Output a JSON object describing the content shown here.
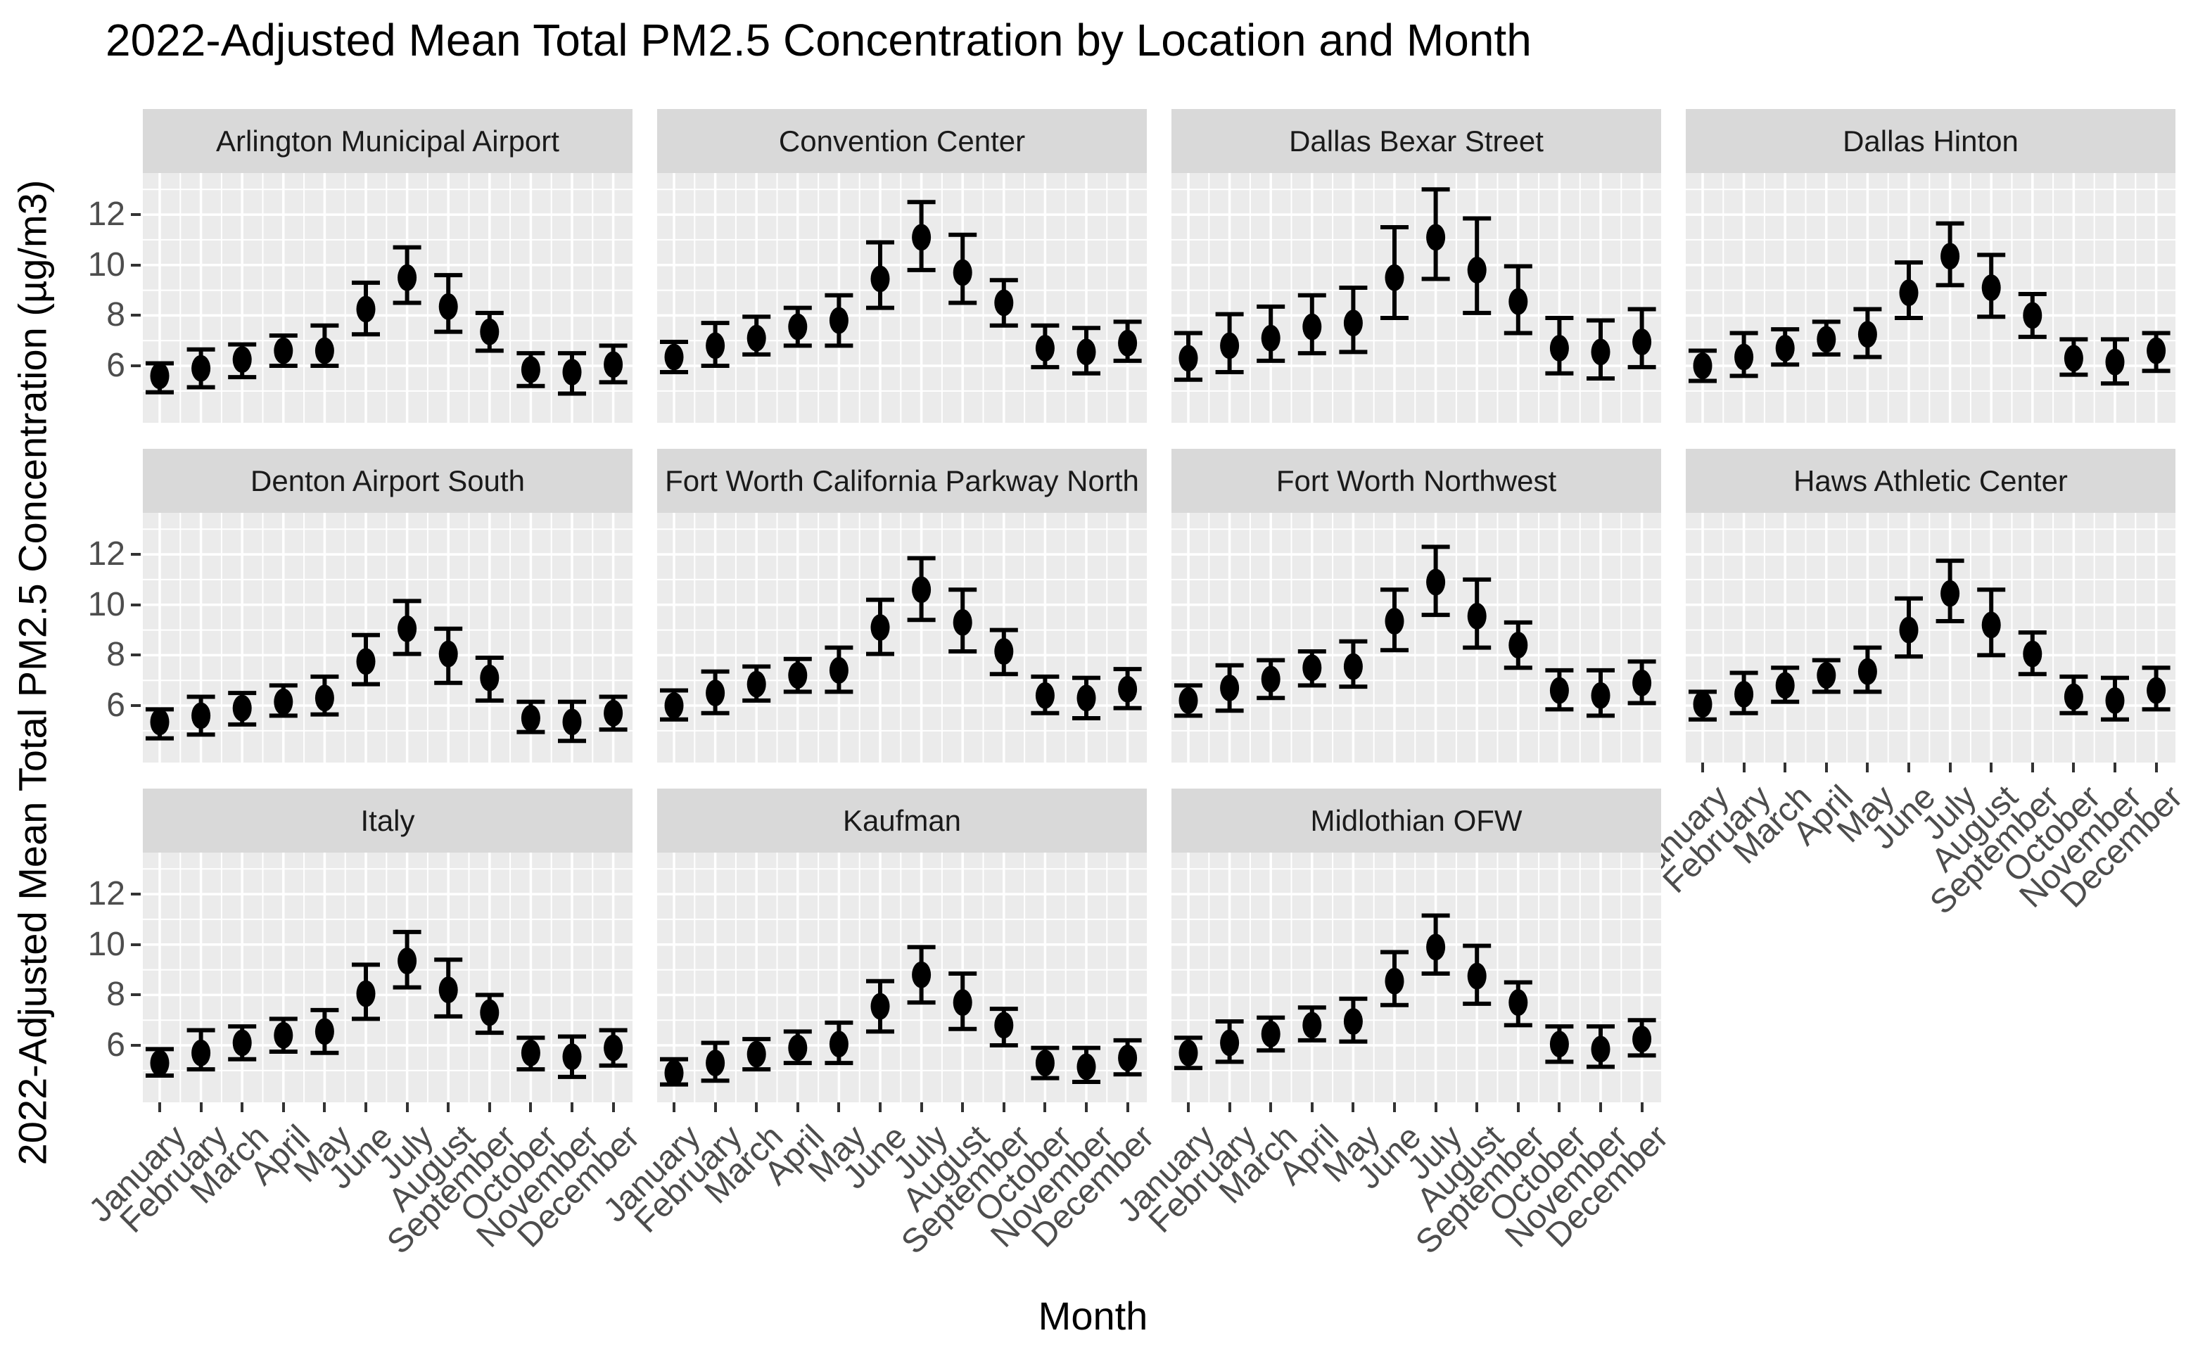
{
  "chart_data": {
    "type": "scatter",
    "subtype": "pointrange-errorbar-facets",
    "title": "2022-Adjusted Mean Total PM2.5 Concentration by Location and Month",
    "xlabel": "Month",
    "ylabel": "2022-Adjusted Mean Total PM2.5 Concentration (µg/m3)",
    "months": [
      "January",
      "February",
      "March",
      "April",
      "May",
      "June",
      "July",
      "August",
      "September",
      "October",
      "November",
      "December"
    ],
    "yticks": [
      12,
      10,
      8,
      6
    ],
    "yticks_minor": [
      13,
      11,
      9,
      7,
      5
    ],
    "ylim": [
      3.74,
      13.65
    ],
    "grid": {
      "horizontal": "major+minor white",
      "vertical": "major+minor white",
      "legend": "none"
    },
    "colors": {
      "panel_bg": "#EBEBEB",
      "strip_bg": "#D9D9D9",
      "grid": "#FFFFFF",
      "data": "#000000",
      "axis_text": "#4D4D4D",
      "tick_mark": "#333333",
      "title_text": "#000000",
      "strip_text": "#1A1A1A"
    },
    "facets": [
      {
        "title": "Arlington Municipal Airport",
        "mean": [
          5.6,
          5.9,
          6.25,
          6.6,
          6.6,
          8.25,
          9.5,
          8.35,
          7.35,
          5.85,
          5.75,
          6.05
        ],
        "lo": [
          4.95,
          5.15,
          5.55,
          6.0,
          6.0,
          7.25,
          8.5,
          7.35,
          6.6,
          5.2,
          4.9,
          5.35
        ],
        "hi": [
          6.1,
          6.65,
          6.85,
          7.2,
          7.6,
          9.3,
          10.7,
          9.6,
          8.1,
          6.5,
          6.5,
          6.8
        ]
      },
      {
        "title": "Convention Center",
        "mean": [
          6.35,
          6.8,
          7.1,
          7.55,
          7.8,
          9.45,
          11.1,
          9.7,
          8.5,
          6.7,
          6.55,
          6.9
        ],
        "lo": [
          5.75,
          6.0,
          6.45,
          6.8,
          6.8,
          8.3,
          9.8,
          8.5,
          7.6,
          5.95,
          5.7,
          6.2
        ],
        "hi": [
          6.95,
          7.7,
          7.95,
          8.3,
          8.8,
          10.9,
          12.5,
          11.2,
          9.4,
          7.6,
          7.5,
          7.75
        ]
      },
      {
        "title": "Dallas Bexar Street",
        "mean": [
          6.3,
          6.8,
          7.1,
          7.55,
          7.7,
          9.5,
          11.1,
          9.8,
          8.55,
          6.7,
          6.55,
          6.95
        ],
        "lo": [
          5.45,
          5.75,
          6.2,
          6.5,
          6.55,
          7.9,
          9.45,
          8.1,
          7.3,
          5.7,
          5.5,
          5.95
        ],
        "hi": [
          7.3,
          8.05,
          8.35,
          8.8,
          9.1,
          11.5,
          13.0,
          11.85,
          9.95,
          7.9,
          7.8,
          8.25
        ]
      },
      {
        "title": "Dallas Hinton",
        "mean": [
          6.0,
          6.35,
          6.7,
          7.05,
          7.25,
          8.9,
          10.35,
          9.1,
          8.0,
          6.3,
          6.15,
          6.6
        ],
        "lo": [
          5.4,
          5.6,
          6.05,
          6.45,
          6.35,
          7.9,
          9.2,
          7.95,
          7.15,
          5.65,
          5.3,
          5.8
        ],
        "hi": [
          6.6,
          7.3,
          7.45,
          7.75,
          8.25,
          10.1,
          11.65,
          10.4,
          8.85,
          7.05,
          7.05,
          7.3
        ]
      },
      {
        "title": "Denton Airport South",
        "mean": [
          5.35,
          5.6,
          5.9,
          6.15,
          6.3,
          7.75,
          9.05,
          8.05,
          7.1,
          5.5,
          5.35,
          5.7
        ],
        "lo": [
          4.7,
          4.85,
          5.25,
          5.6,
          5.65,
          6.85,
          8.05,
          6.9,
          6.2,
          4.95,
          4.6,
          5.05
        ],
        "hi": [
          5.85,
          6.35,
          6.5,
          6.8,
          7.15,
          8.8,
          10.15,
          9.05,
          7.9,
          6.15,
          6.15,
          6.35
        ]
      },
      {
        "title": "Fort Worth California Parkway North",
        "mean": [
          6.0,
          6.5,
          6.85,
          7.2,
          7.4,
          9.1,
          10.6,
          9.3,
          8.15,
          6.4,
          6.3,
          6.65
        ],
        "lo": [
          5.45,
          5.7,
          6.2,
          6.55,
          6.55,
          8.05,
          9.4,
          8.15,
          7.25,
          5.7,
          5.5,
          5.9
        ],
        "hi": [
          6.6,
          7.35,
          7.55,
          7.85,
          8.3,
          10.2,
          11.85,
          10.6,
          9.0,
          7.15,
          7.1,
          7.45
        ]
      },
      {
        "title": "Fort Worth Northwest",
        "mean": [
          6.2,
          6.7,
          7.05,
          7.5,
          7.55,
          9.35,
          10.9,
          9.55,
          8.4,
          6.6,
          6.4,
          6.9
        ],
        "lo": [
          5.6,
          5.8,
          6.3,
          6.8,
          6.75,
          8.2,
          9.6,
          8.3,
          7.5,
          5.85,
          5.6,
          6.1
        ],
        "hi": [
          6.8,
          7.6,
          7.8,
          8.15,
          8.55,
          10.6,
          12.3,
          11.0,
          9.3,
          7.4,
          7.4,
          7.75
        ]
      },
      {
        "title": "Haws Athletic Center",
        "mean": [
          6.05,
          6.45,
          6.8,
          7.2,
          7.35,
          9.0,
          10.45,
          9.2,
          8.05,
          6.35,
          6.2,
          6.6
        ],
        "lo": [
          5.45,
          5.7,
          6.15,
          6.55,
          6.55,
          7.95,
          9.35,
          8.0,
          7.25,
          5.7,
          5.45,
          5.85
        ],
        "hi": [
          6.55,
          7.3,
          7.5,
          7.8,
          8.3,
          10.25,
          11.75,
          10.6,
          8.9,
          7.15,
          7.1,
          7.5
        ]
      },
      {
        "title": "Italy",
        "mean": [
          5.3,
          5.7,
          6.1,
          6.4,
          6.55,
          8.05,
          9.35,
          8.2,
          7.3,
          5.7,
          5.55,
          5.9
        ],
        "lo": [
          4.8,
          5.05,
          5.45,
          5.75,
          5.7,
          7.05,
          8.3,
          7.15,
          6.5,
          5.05,
          4.75,
          5.2
        ],
        "hi": [
          5.85,
          6.6,
          6.75,
          7.05,
          7.4,
          9.2,
          10.5,
          9.4,
          8.0,
          6.3,
          6.35,
          6.6
        ]
      },
      {
        "title": "Kaufman",
        "mean": [
          4.9,
          5.3,
          5.65,
          5.9,
          6.05,
          7.55,
          8.8,
          7.7,
          6.8,
          5.3,
          5.15,
          5.5
        ],
        "lo": [
          4.45,
          4.6,
          5.05,
          5.3,
          5.3,
          6.55,
          7.7,
          6.65,
          6.0,
          4.7,
          4.55,
          4.85
        ],
        "hi": [
          5.45,
          6.1,
          6.25,
          6.55,
          6.9,
          8.55,
          9.9,
          8.85,
          7.45,
          5.9,
          5.9,
          6.2
        ]
      },
      {
        "title": "Midlothian OFW",
        "mean": [
          5.7,
          6.1,
          6.45,
          6.8,
          6.95,
          8.55,
          9.9,
          8.75,
          7.7,
          6.05,
          5.85,
          6.25
        ],
        "lo": [
          5.1,
          5.35,
          5.8,
          6.2,
          6.15,
          7.6,
          8.85,
          7.65,
          6.8,
          5.35,
          5.15,
          5.6
        ],
        "hi": [
          6.3,
          6.95,
          7.1,
          7.5,
          7.85,
          9.7,
          11.15,
          9.95,
          8.5,
          6.75,
          6.75,
          7.0
        ]
      }
    ]
  }
}
